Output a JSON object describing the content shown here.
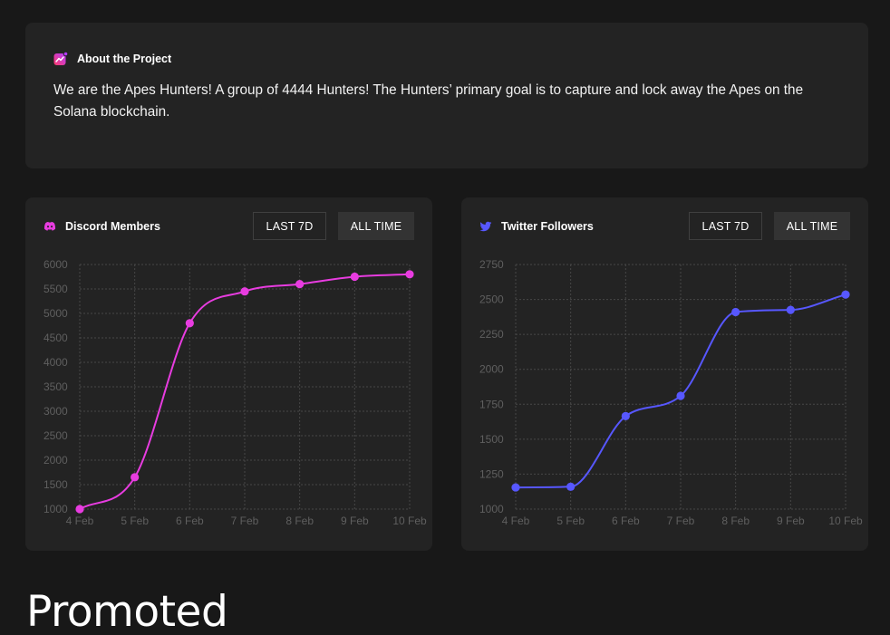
{
  "about": {
    "title": "About the Project",
    "text": "We are the Apes Hunters! A group of 4444 Hunters! The Hunters’ primary goal is to capture and lock away the Apes on the Solana blockchain.",
    "icon": "chart-icon"
  },
  "tabs": {
    "last7": "LAST 7D",
    "all": "ALL TIME"
  },
  "colors": {
    "discord": "#e83ce0",
    "twitter": "#5757ff"
  },
  "charts": {
    "discord": {
      "title": "Discord Members",
      "icon": "discord-icon"
    },
    "twitter": {
      "title": "Twitter Followers",
      "icon": "twitter-icon"
    }
  },
  "chart_data": [
    {
      "type": "line",
      "title": "Discord Members",
      "categories": [
        "4 Feb",
        "5 Feb",
        "6 Feb",
        "7 Feb",
        "8 Feb",
        "9 Feb",
        "10 Feb"
      ],
      "series": [
        {
          "values": [
            1000,
            1650,
            4800,
            5450,
            5600,
            5750,
            5800
          ]
        }
      ],
      "ylim": [
        1000,
        6000
      ],
      "yticks": [
        1000,
        1500,
        2000,
        2500,
        3000,
        3500,
        4000,
        4500,
        5000,
        5500,
        6000
      ],
      "grid": true,
      "color": "#e83ce0"
    },
    {
      "type": "line",
      "title": "Twitter Followers",
      "categories": [
        "4 Feb",
        "5 Feb",
        "6 Feb",
        "7 Feb",
        "8 Feb",
        "9 Feb",
        "10 Feb"
      ],
      "series": [
        {
          "values": [
            1155,
            1160,
            1665,
            1810,
            2410,
            2425,
            2535
          ]
        }
      ],
      "ylim": [
        1000,
        2750
      ],
      "yticks": [
        1000,
        1250,
        1500,
        1750,
        2000,
        2250,
        2500,
        2750
      ],
      "grid": true,
      "color": "#5757ff"
    }
  ],
  "promoted": "Promoted"
}
